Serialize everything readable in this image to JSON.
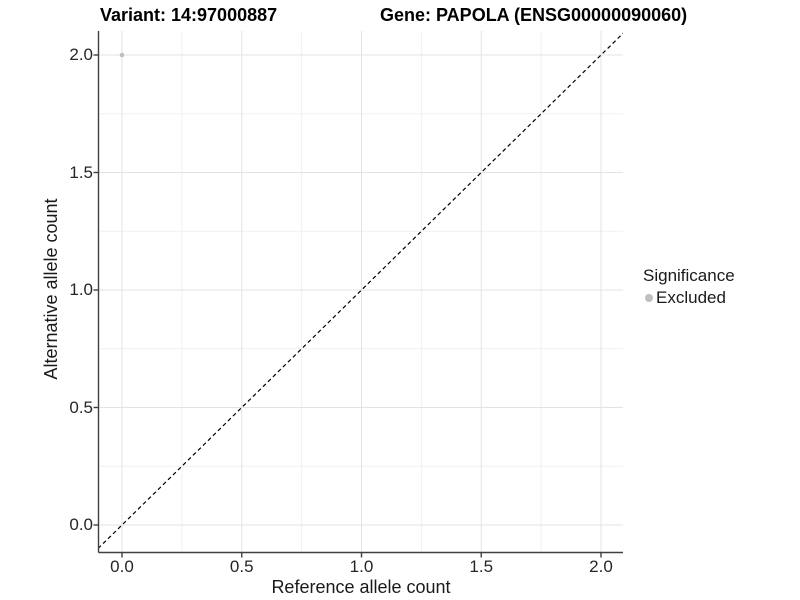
{
  "header": {
    "variant_title": "Variant: 14:97000887",
    "gene_title": "Gene: PAPOLA (ENSG00000090060)"
  },
  "chart_data": {
    "type": "scatter",
    "title": "Variant: 14:97000887   Gene: PAPOLA (ENSG00000090060)",
    "xlabel": "Reference allele count",
    "ylabel": "Alternative allele count",
    "xlim": [
      -0.1,
      2.1
    ],
    "ylim": [
      -0.1,
      2.1
    ],
    "x_ticks": {
      "values": [
        0,
        0.5,
        1,
        1.5,
        2
      ],
      "labels": [
        "0.0",
        "0.5",
        "1.0",
        "1.5",
        "2.0"
      ]
    },
    "y_ticks": {
      "values": [
        0,
        0.5,
        1,
        1.5,
        2
      ],
      "labels": [
        "0.0",
        "0.5",
        "1.0",
        "1.5",
        "2.0"
      ]
    },
    "minor_grid_x": [
      0.25,
      0.75,
      1.25,
      1.75
    ],
    "minor_grid_y": [
      0.25,
      0.75,
      1.25,
      1.75
    ],
    "grid": "major+minor",
    "series": [
      {
        "name": "Excluded",
        "marker": "circle",
        "color": "#bfbfbf",
        "points": [
          [
            0,
            2
          ]
        ]
      }
    ],
    "reference_line": {
      "kind": "identity y=x",
      "style": "dashed",
      "color": "#000000",
      "from": [
        -0.1,
        -0.1
      ],
      "to": [
        2.1,
        2.1
      ]
    },
    "legend": {
      "title": "Significance",
      "position": "right",
      "entries": [
        {
          "label": "Excluded",
          "color": "#bfbfbf",
          "marker": "circle"
        }
      ]
    }
  },
  "colors": {
    "background": "#ffffff",
    "grid_major": "#e3e3e3",
    "grid_minor": "#f1f1f1",
    "axis_line": "#404040",
    "tick_mark": "#404040",
    "tick_text": "#262626",
    "title_text": "#000000",
    "point": "#bfbfbf",
    "dashed_line": "#000000"
  }
}
